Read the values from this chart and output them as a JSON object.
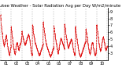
{
  "title": "Milwaukee Weather - Solar Radiation Avg per Day W/m2/minute",
  "y_values": [
    8.5,
    8.1,
    7.8,
    7.2,
    6.8,
    6.5,
    6.1,
    5.9,
    5.8,
    5.5,
    5.2,
    4.9,
    4.7,
    4.5,
    4.3,
    4.2,
    4.0,
    4.1,
    4.3,
    4.5,
    4.7,
    4.8,
    5.0,
    5.1,
    5.3,
    5.5,
    5.6,
    5.5,
    5.2,
    4.9,
    4.5,
    4.2,
    3.9,
    3.7,
    3.5,
    3.4,
    3.2,
    3.1,
    2.9,
    2.8,
    2.7,
    2.8,
    3.0,
    3.2,
    3.5,
    3.7,
    3.9,
    4.1,
    6.8,
    6.5,
    6.1,
    5.8,
    5.5,
    5.2,
    4.9,
    4.7,
    4.5,
    4.2,
    3.9,
    3.7,
    3.5,
    3.3,
    3.2,
    3.0,
    2.9,
    2.9,
    3.0,
    3.2,
    3.5,
    3.8,
    4.0,
    4.2,
    4.3,
    4.4,
    4.5,
    4.5,
    4.4,
    4.2,
    4.0,
    3.8,
    3.6,
    3.5,
    3.4,
    3.5,
    3.7,
    3.9,
    4.1,
    4.2,
    4.3,
    4.3,
    4.4,
    4.5,
    4.7,
    4.9,
    5.1,
    5.2,
    6.2,
    5.9,
    5.7,
    5.5,
    5.3,
    5.2,
    5.1,
    5.0,
    4.8,
    4.7,
    4.5,
    4.4,
    4.3,
    4.2,
    4.2,
    4.3,
    4.4,
    4.5,
    4.6,
    4.7,
    4.8,
    4.9,
    5.0,
    5.1,
    5.2,
    5.3,
    5.4,
    5.5,
    5.6,
    5.7,
    5.7,
    5.6,
    5.5,
    5.3,
    5.1,
    4.9,
    4.7,
    4.5,
    4.2,
    3.9,
    3.6,
    3.3,
    3.1,
    2.9,
    2.8,
    2.7,
    2.8,
    2.9,
    7.1,
    6.8,
    6.5,
    6.2,
    5.9,
    5.7,
    5.5,
    5.3,
    5.1,
    4.9,
    4.7,
    4.5,
    4.4,
    4.3,
    4.2,
    4.1,
    4.0,
    3.9,
    3.8,
    3.7,
    3.6,
    3.5,
    3.4,
    3.3,
    3.2,
    3.1,
    3.0,
    2.9,
    2.8,
    2.7,
    2.7,
    2.7,
    2.8,
    2.9,
    3.0,
    3.1,
    3.2,
    3.3,
    3.4,
    3.5,
    3.6,
    3.7,
    3.8,
    3.9,
    4.0,
    4.1,
    4.2,
    4.3,
    7.5,
    7.2,
    6.9,
    6.6,
    6.3,
    6.1,
    5.8,
    5.6,
    5.3,
    5.1,
    4.9,
    4.7,
    4.5,
    4.3,
    4.2,
    4.1,
    4.0,
    3.9,
    3.8,
    3.7,
    3.6,
    3.5,
    3.4,
    3.3,
    3.2,
    3.1,
    3.0,
    2.9,
    2.8,
    2.7,
    2.6,
    2.5,
    2.5,
    2.5,
    2.6,
    2.7,
    2.8,
    2.9,
    3.0,
    3.1,
    3.2,
    3.3,
    3.4,
    3.5,
    3.6,
    3.7,
    3.8,
    3.9,
    6.9,
    6.6,
    6.3,
    6.1,
    5.8,
    5.6,
    5.3,
    5.1,
    4.9,
    4.7,
    4.5,
    4.3,
    4.1,
    3.9,
    3.7,
    3.5,
    3.3,
    3.1,
    3.0,
    3.0,
    3.1,
    3.3,
    3.5,
    3.7,
    3.9,
    4.1,
    4.3,
    4.5,
    4.7,
    4.9,
    5.0,
    5.1,
    5.1,
    5.0,
    4.9,
    4.8,
    4.7,
    4.6,
    4.5,
    4.4,
    4.3,
    4.2,
    4.1,
    4.0,
    3.9,
    3.8,
    3.7,
    3.6,
    7.2,
    6.9,
    6.6,
    6.4,
    6.1,
    5.9,
    5.6,
    5.4,
    5.2,
    5.0,
    4.8,
    4.6,
    4.4,
    4.2,
    4.0,
    3.9,
    3.8,
    3.8,
    3.9,
    4.0,
    4.1,
    4.2,
    4.3,
    4.4,
    4.5,
    4.6,
    4.7,
    4.8,
    4.9,
    5.0,
    5.0,
    4.9,
    4.8,
    4.7,
    4.5,
    4.3,
    4.1,
    3.9,
    3.7,
    3.5,
    3.3,
    3.1,
    3.0,
    2.9,
    2.8,
    2.8,
    2.9,
    3.0,
    6.8,
    6.5,
    6.2,
    6.0,
    5.7,
    5.5,
    5.2,
    5.0,
    4.8,
    4.6,
    4.4,
    4.2,
    4.0,
    3.8,
    3.6,
    3.4,
    3.2,
    3.0,
    2.9,
    2.8,
    2.7,
    2.6,
    2.5,
    2.5,
    2.5,
    2.6,
    2.7,
    2.8,
    2.9,
    3.0,
    3.1,
    3.2,
    3.3,
    3.4,
    3.5,
    3.6,
    3.7,
    3.8,
    3.9,
    4.0,
    4.1,
    4.2,
    4.3,
    4.4,
    4.5,
    4.6,
    4.7,
    4.8,
    6.5,
    6.2,
    5.9,
    5.7,
    5.4,
    5.2,
    4.9,
    4.7,
    4.5,
    4.3,
    4.1,
    3.9,
    3.7,
    3.5,
    3.3,
    3.1,
    3.0,
    2.9,
    2.9,
    3.0,
    3.1,
    3.3,
    3.5,
    3.7,
    3.9,
    4.1,
    4.3,
    4.4,
    4.5,
    4.5,
    4.4,
    4.3,
    4.1,
    3.9,
    3.7,
    3.5,
    3.3,
    3.1,
    2.9,
    2.8,
    2.7,
    2.7,
    2.8,
    2.9,
    3.0,
    3.2,
    3.4,
    3.6,
    7.1,
    6.8,
    6.5,
    6.2,
    5.9,
    5.7,
    5.4,
    5.2,
    4.9,
    4.7,
    4.5,
    4.3,
    4.1,
    3.9,
    3.7,
    3.5,
    3.4,
    3.3,
    3.4,
    3.5,
    3.7,
    3.9,
    4.1,
    4.3,
    4.5,
    4.7,
    4.9,
    5.1,
    5.2,
    5.3,
    5.3,
    5.2,
    5.0,
    4.8,
    4.6,
    4.4,
    4.2,
    4.0,
    3.8,
    3.6,
    3.5,
    3.4,
    3.5,
    3.6,
    3.7,
    3.8,
    3.9,
    4.0
  ],
  "line_color": "#dd0000",
  "bg_color": "#ffffff",
  "grid_color": "#999999",
  "ylim": [
    2.0,
    9.5
  ],
  "ytick_labels": [
    "9",
    "8",
    "7",
    "6",
    "5",
    "4",
    "3"
  ],
  "ytick_vals": [
    9,
    8,
    7,
    6,
    5,
    4,
    3
  ],
  "title_fontsize": 3.8,
  "tick_fontsize": 3.5,
  "num_years": 10,
  "year_start": 2001,
  "points_per_year": 48
}
